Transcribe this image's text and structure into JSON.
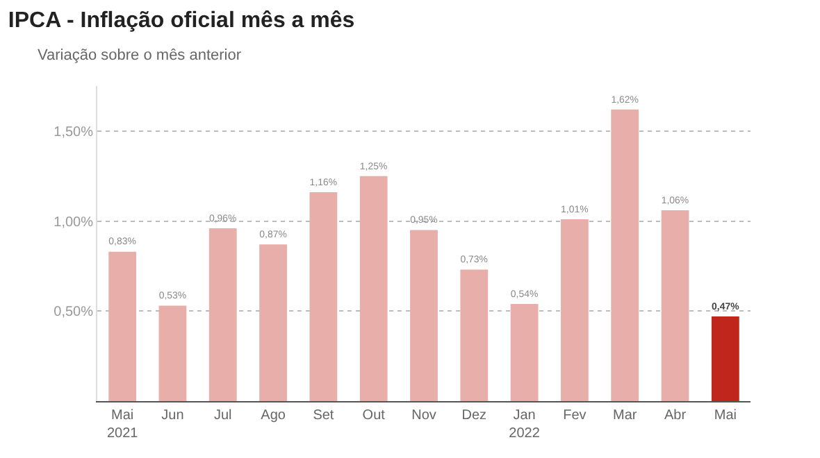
{
  "chart_data": {
    "type": "bar",
    "title": "IPCA - Inflação oficial mês a mês",
    "subtitle": "Variação sobre o mês anterior",
    "categories": [
      "Mai\n2021",
      "Jun",
      "Jul",
      "Ago",
      "Set",
      "Out",
      "Nov",
      "Dez",
      "Jan\n2022",
      "Fev",
      "Mar",
      "Abr",
      "Mai"
    ],
    "values": [
      0.83,
      0.53,
      0.96,
      0.87,
      1.16,
      1.25,
      0.95,
      0.73,
      0.54,
      1.01,
      1.62,
      1.06,
      0.47
    ],
    "value_labels": [
      "0,83%",
      "0,53%",
      "0,96%",
      "0,87%",
      "1,16%",
      "1,25%",
      "0,95%",
      "0,73%",
      "0,54%",
      "1,01%",
      "1,62%",
      "1,06%",
      "0,47%"
    ],
    "colors": [
      "#e8aeaa",
      "#e8aeaa",
      "#e8aeaa",
      "#e8aeaa",
      "#e8aeaa",
      "#e8aeaa",
      "#e8aeaa",
      "#e8aeaa",
      "#e8aeaa",
      "#e8aeaa",
      "#e8aeaa",
      "#e8aeaa",
      "#c0261b"
    ],
    "ylim": [
      0,
      1.75
    ],
    "yticks": [
      {
        "value": 0.5,
        "label": "0,50%"
      },
      {
        "value": 1.0,
        "label": "1,00%"
      },
      {
        "value": 1.5,
        "label": "1,50%"
      }
    ],
    "grid": "y"
  }
}
